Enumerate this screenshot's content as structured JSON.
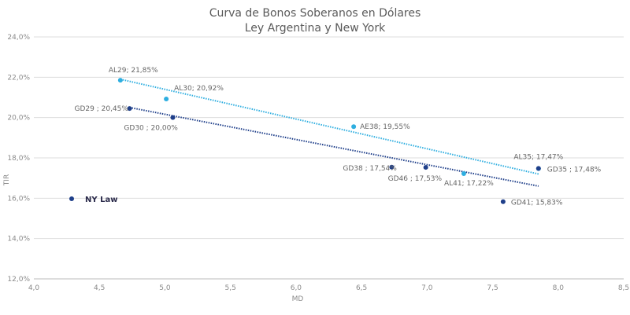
{
  "colors": {
    "ny_law": "#1f3f8a",
    "ley_argentina": "#2eaee0",
    "grid": "#dddddd",
    "axis": "#bbbbbb"
  },
  "chart_data": {
    "type": "scatter",
    "title_line1": "Curva de Bonos Soberanos en Dólares",
    "title_line2": "Ley Argentina y New York",
    "xlabel": "MD",
    "ylabel": "TIR",
    "xlim": [
      4.0,
      8.5
    ],
    "ylim": [
      12.0,
      24.0
    ],
    "x_ticks": [
      "4,0",
      "4,5",
      "5,0",
      "5,5",
      "6,0",
      "6,5",
      "7,0",
      "7,5",
      "8,0",
      "8,5"
    ],
    "y_ticks": [
      "12,0%",
      "14,0%",
      "16,0%",
      "18,0%",
      "20,0%",
      "22,0%",
      "24,0%"
    ],
    "grid": "horizontal",
    "legend": [
      {
        "name": "NY Law",
        "series": "ny_law"
      }
    ],
    "series": [
      {
        "id": "ley_argentina",
        "points": [
          {
            "label": "AL29; 21,85%",
            "x": 4.66,
            "y": 21.85
          },
          {
            "label": "AL30; 20,92%",
            "x": 5.01,
            "y": 20.92
          },
          {
            "label": "AE38; 19,55%",
            "x": 6.44,
            "y": 19.55
          },
          {
            "label": "AL41; 17,22%",
            "x": 7.28,
            "y": 17.22
          },
          {
            "label": "AL35; 17,47%",
            "x": 7.85,
            "y": 17.47
          }
        ],
        "trend": [
          {
            "x": 4.66,
            "y": 21.9
          },
          {
            "x": 7.85,
            "y": 17.2
          }
        ]
      },
      {
        "id": "ny_law",
        "points": [
          {
            "label": "GD29 ; 20,45%",
            "x": 4.73,
            "y": 20.45
          },
          {
            "label": "GD30 ; 20,00%",
            "x": 5.06,
            "y": 20.0
          },
          {
            "label": "GD38 ; 17,54%",
            "x": 6.73,
            "y": 17.54
          },
          {
            "label": "GD46 ; 17,53%",
            "x": 6.99,
            "y": 17.53
          },
          {
            "label": "GD41; 15,83%",
            "x": 7.58,
            "y": 15.83
          },
          {
            "label": "GD35 ; 17,48%",
            "x": 7.85,
            "y": 17.48
          }
        ],
        "trend": [
          {
            "x": 4.73,
            "y": 20.5
          },
          {
            "x": 7.85,
            "y": 16.6
          }
        ]
      }
    ]
  }
}
